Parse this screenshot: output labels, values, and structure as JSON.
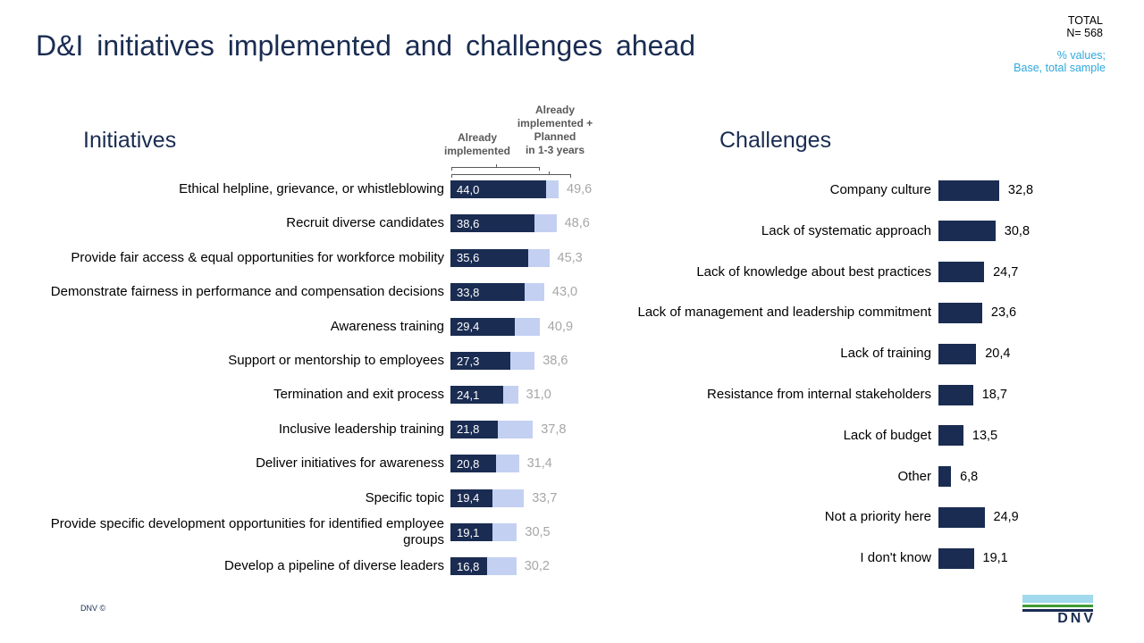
{
  "title": "D&I initiatives implemented and challenges ahead",
  "header_right": {
    "total_label": "TOTAL",
    "n_label": "N= 568",
    "note_line1": "% values;",
    "note_line2": "Base, total sample"
  },
  "footer": {
    "copyright": "DNV ©",
    "logo_text": "DNV"
  },
  "colors": {
    "navy": "#1a2c52",
    "periwinkle": "#c3d0f2",
    "value_gray": "#a6a6a6",
    "header_gray": "#595959",
    "cyan": "#2fa8de",
    "logo_lightblue": "#a2d9ec",
    "logo_green": "#3f9c35"
  },
  "chart_data": [
    {
      "type": "bar",
      "orientation": "horizontal",
      "title": "Initiatives",
      "series_labels": [
        "Already\nimplemented",
        "Already\nimplemented +\nPlanned\nin 1-3 years"
      ],
      "categories": [
        "Ethical helpline, grievance, or whistleblowing",
        "Recruit diverse candidates",
        "Provide fair access & equal opportunities for workforce mobility",
        "Demonstrate fairness in performance and compensation decisions",
        "Awareness training",
        "Support or mentorship to employees",
        "Termination and exit process",
        "Inclusive leadership training",
        "Deliver initiatives for awareness",
        "Specific topic",
        "Provide specific development opportunities for identified employee\ngroups",
        "Develop a pipeline of diverse leaders"
      ],
      "series": [
        {
          "name": "Already implemented",
          "values": [
            44.0,
            38.6,
            35.6,
            33.8,
            29.4,
            27.3,
            24.1,
            21.8,
            20.8,
            19.4,
            19.1,
            16.8
          ]
        },
        {
          "name": "Already implemented + Planned in 1-3 years (total)",
          "values": [
            49.6,
            48.6,
            45.3,
            43.0,
            40.9,
            38.6,
            31.0,
            37.8,
            31.4,
            33.7,
            30.5,
            30.2
          ]
        }
      ],
      "value_format": "comma-decimal",
      "xlim": [
        0,
        55
      ],
      "grid": false,
      "legend_position": "top-as-brackets"
    },
    {
      "type": "bar",
      "orientation": "horizontal",
      "title": "Challenges",
      "categories": [
        "Company culture",
        "Lack of systematic approach",
        "Lack of knowledge about best practices",
        "Lack of management and leadership commitment",
        "Lack of training",
        "Resistance from internal stakeholders",
        "Lack of budget",
        "Other",
        "Not a priority here",
        "I don't know"
      ],
      "values": [
        32.8,
        30.8,
        24.7,
        23.6,
        20.4,
        18.7,
        13.5,
        6.8,
        24.9,
        19.1
      ],
      "value_format": "comma-decimal",
      "xlim": [
        0,
        40
      ],
      "grid": false
    }
  ]
}
